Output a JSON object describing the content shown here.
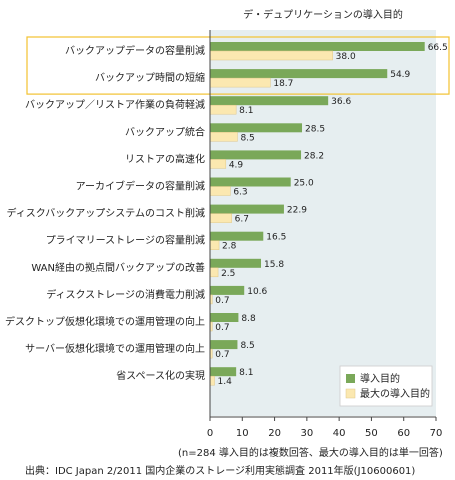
{
  "chart_data": {
    "type": "bar",
    "orientation": "horizontal",
    "title": "デ・デュプリケーションの導入目的",
    "categories": [
      "バックアップデータの容量削減",
      "バックアップ時間の短縮",
      "バックアップ／リストア作業の負荷軽減",
      "バックアップ統合",
      "リストアの高速化",
      "アーカイブデータの容量削減",
      "ディスクバックアップシステムのコスト削減",
      "プライマリーストレージの容量削減",
      "WAN経由の拠点間バックアップの改善",
      "ディスクストレージの消費電力削減",
      "デスクトップ仮想化環境での運用管理の向上",
      "サーバー仮想化環境での運用管理の向上",
      "省スペース化の実現"
    ],
    "series": [
      {
        "name": "導入目的",
        "color": "#7aa859",
        "values": [
          66.5,
          54.9,
          36.6,
          28.5,
          28.2,
          25.0,
          22.9,
          16.5,
          15.8,
          10.6,
          8.8,
          8.5,
          8.1
        ]
      },
      {
        "name": "最大の導入目的",
        "color": "#fbe8b0",
        "values": [
          38.0,
          18.7,
          8.1,
          8.5,
          4.9,
          6.3,
          6.7,
          2.8,
          2.5,
          0.7,
          0.7,
          0.7,
          1.4
        ]
      }
    ],
    "value_labels": [
      [
        "66.5",
        "54.9",
        "36.6",
        "28.5",
        "28.2",
        "25.0",
        "22.9",
        "16.5",
        "15.8",
        "10.6",
        "8.8",
        "8.5",
        "8.1"
      ],
      [
        "38.0",
        "18.7",
        "8.1",
        "8.5",
        "4.9",
        "6.3",
        "6.7",
        "2.8",
        "2.5",
        "0.7",
        "0.7",
        "0.7",
        "1.4"
      ]
    ],
    "xlim": [
      0,
      70
    ],
    "xticks": [
      "0",
      "10",
      "20",
      "30",
      "40",
      "50",
      "60",
      "70"
    ],
    "highlighted_categories": [
      0,
      1
    ],
    "highlight_color": "#f2c230",
    "grid": false,
    "legend_position": "bottom-right"
  },
  "note": "(n=284 導入目的は複数回答、最大の導入目的は単一回答)",
  "source": "出典：IDC Japan 2/2011 国内企業のストレージ利用実態調査 2011年版(J10600601)"
}
